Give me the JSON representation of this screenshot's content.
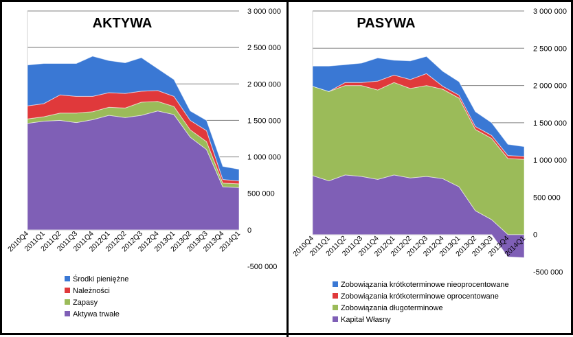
{
  "chart_data": [
    {
      "type": "area",
      "stacked": true,
      "title": "AKTYWA",
      "categories": [
        "2010Q4",
        "2011Q1",
        "2011Q2",
        "2011Q3",
        "2011Q4",
        "2012Q1",
        "2012Q2",
        "2012Q3",
        "2012Q4",
        "2013Q1",
        "2013Q2",
        "2013Q3",
        "2013Q4",
        "2014Q1"
      ],
      "series": [
        {
          "name": "Aktywa trwałe",
          "color": "#7F5FB6",
          "values": [
            1460000,
            1490000,
            1500000,
            1470000,
            1510000,
            1570000,
            1540000,
            1570000,
            1630000,
            1580000,
            1270000,
            1100000,
            590000,
            580000
          ]
        },
        {
          "name": "Zapasy",
          "color": "#9BBB59",
          "values": [
            60000,
            60000,
            100000,
            130000,
            110000,
            110000,
            130000,
            180000,
            130000,
            110000,
            100000,
            110000,
            50000,
            50000
          ]
        },
        {
          "name": "Należności",
          "color": "#E0393B",
          "values": [
            180000,
            180000,
            250000,
            230000,
            210000,
            200000,
            200000,
            150000,
            150000,
            140000,
            130000,
            150000,
            50000,
            40000
          ]
        },
        {
          "name": "Środki pieniężne",
          "color": "#3A78D4",
          "values": [
            560000,
            550000,
            430000,
            450000,
            550000,
            440000,
            420000,
            460000,
            300000,
            230000,
            130000,
            140000,
            180000,
            160000
          ]
        }
      ],
      "ylim": [
        -500000,
        3000000
      ],
      "yticks": [
        "-500 000",
        "0",
        "500 000",
        "1 000 000",
        "1 500 000",
        "2 000 000",
        "2 500 000",
        "3 000 000"
      ],
      "ytick_values": [
        -500000,
        0,
        500000,
        1000000,
        1500000,
        2000000,
        2500000,
        3000000
      ],
      "legend": "bottom",
      "grid": true
    },
    {
      "type": "area",
      "stacked": true,
      "title": "PASYWA",
      "categories": [
        "2010Q4",
        "2011Q1",
        "2011Q2",
        "2011Q3",
        "2011Q4",
        "2012Q1",
        "2012Q2",
        "2012Q3",
        "2012Q4",
        "2013Q1",
        "2013Q2",
        "2013Q3",
        "2013Q4",
        "2014Q1"
      ],
      "series": [
        {
          "name": "Kapitał Własny",
          "color": "#7F5FB6",
          "values": [
            790000,
            720000,
            800000,
            780000,
            740000,
            800000,
            760000,
            780000,
            750000,
            640000,
            320000,
            200000,
            -300000,
            -310000
          ]
        },
        {
          "name": "Zobowiązania długoterminowe",
          "color": "#9BBB59",
          "values": [
            1200000,
            1200000,
            1200000,
            1220000,
            1200000,
            1240000,
            1200000,
            1220000,
            1200000,
            1190000,
            1090000,
            1090000,
            1020000,
            1010000
          ]
        },
        {
          "name": "Zobowiązania krótkoterminowe oprocentowane",
          "color": "#E0393B",
          "values": [
            0,
            0,
            40000,
            40000,
            120000,
            100000,
            120000,
            160000,
            40000,
            40000,
            40000,
            40000,
            40000,
            40000
          ]
        },
        {
          "name": "Zobowiązania krótkoterminowe nieoprocentowane",
          "color": "#3A78D4",
          "values": [
            270000,
            340000,
            240000,
            260000,
            310000,
            200000,
            250000,
            230000,
            200000,
            180000,
            200000,
            170000,
            150000,
            130000
          ]
        }
      ],
      "ylim": [
        -500000,
        3000000
      ],
      "yticks": [
        "-500 000",
        "0",
        "500 000",
        "1 000 000",
        "1 500 000",
        "2 000 000",
        "2 500 000",
        "3 000 000"
      ],
      "ytick_values": [
        -500000,
        0,
        500000,
        1000000,
        1500000,
        2000000,
        2500000,
        3000000
      ],
      "legend": "bottom",
      "grid": true
    }
  ]
}
